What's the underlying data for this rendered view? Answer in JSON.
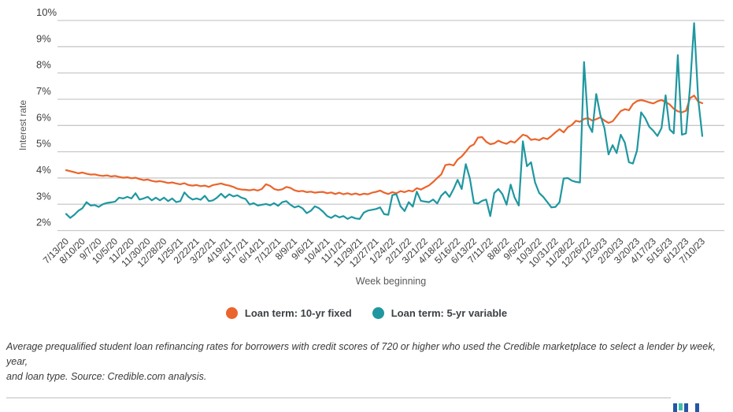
{
  "chart_data": {
    "type": "line",
    "title": "",
    "xlabel": "Week beginning",
    "ylabel": "Interest rate",
    "ylim": [
      2,
      10
    ],
    "grid": true,
    "legend_position": "bottom",
    "y_tick_labels": [
      "10%",
      "9%",
      "8%",
      "7%",
      "6%",
      "5%",
      "4%",
      "3%",
      "2%"
    ],
    "y_tick_values": [
      10,
      9,
      8,
      7,
      6,
      5,
      4,
      3,
      2
    ],
    "weeks_per_tick": 4,
    "x_tick_labels": [
      "7/13/20",
      "8/10/20",
      "9/7/20",
      "10/5/20",
      "11/2/20",
      "11/30/20",
      "12/28/20",
      "1/25/21",
      "2/22/21",
      "3/22/21",
      "4/19/21",
      "5/17/21",
      "6/14/21",
      "7/12/21",
      "8/9/21",
      "9/6/21",
      "10/4/21",
      "11/1/21",
      "11/29/21",
      "12/27/21",
      "1/24/22",
      "2/21/22",
      "3/21/22",
      "4/18/22",
      "5/16/22",
      "6/13/22",
      "7/11/22",
      "8/8/22",
      "9/5/22",
      "10/3/22",
      "10/31/22",
      "11/28/22",
      "12/26/22",
      "1/23/23",
      "2/20/23",
      "3/20/23",
      "4/17/23",
      "5/15/23",
      "6/12/23",
      "7/10/23"
    ],
    "series": [
      {
        "name": "Loan term: 10-yr fixed",
        "color": "#EB642B",
        "values": [
          4.3,
          4.26,
          4.22,
          4.18,
          4.21,
          4.16,
          4.13,
          4.14,
          4.1,
          4.08,
          4.1,
          4.06,
          4.08,
          4.04,
          4.01,
          4.03,
          3.99,
          4.01,
          3.96,
          3.92,
          3.94,
          3.89,
          3.86,
          3.88,
          3.85,
          3.81,
          3.83,
          3.79,
          3.76,
          3.8,
          3.73,
          3.71,
          3.73,
          3.69,
          3.71,
          3.66,
          3.73,
          3.76,
          3.79,
          3.74,
          3.71,
          3.66,
          3.59,
          3.56,
          3.55,
          3.53,
          3.56,
          3.52,
          3.58,
          3.76,
          3.7,
          3.58,
          3.54,
          3.57,
          3.66,
          3.62,
          3.53,
          3.49,
          3.51,
          3.46,
          3.48,
          3.44,
          3.46,
          3.47,
          3.42,
          3.45,
          3.39,
          3.44,
          3.38,
          3.42,
          3.37,
          3.41,
          3.36,
          3.4,
          3.38,
          3.44,
          3.47,
          3.52,
          3.44,
          3.39,
          3.46,
          3.42,
          3.5,
          3.46,
          3.52,
          3.49,
          3.61,
          3.56,
          3.64,
          3.72,
          3.85,
          4.0,
          4.14,
          4.49,
          4.52,
          4.48,
          4.7,
          4.82,
          5.0,
          5.2,
          5.28,
          5.54,
          5.56,
          5.38,
          5.29,
          5.32,
          5.42,
          5.35,
          5.3,
          5.4,
          5.35,
          5.5,
          5.65,
          5.6,
          5.45,
          5.48,
          5.44,
          5.53,
          5.48,
          5.6,
          5.74,
          5.86,
          5.74,
          5.93,
          6.02,
          6.18,
          6.14,
          6.25,
          6.28,
          6.19,
          6.24,
          6.31,
          6.19,
          6.1,
          6.16,
          6.35,
          6.55,
          6.62,
          6.58,
          6.82,
          6.93,
          6.97,
          6.93,
          6.88,
          6.84,
          6.92,
          6.97,
          6.89,
          6.8,
          6.64,
          6.54,
          6.5,
          6.56,
          7.04,
          7.14,
          6.91,
          6.85
        ]
      },
      {
        "name": "Loan term: 5-yr variable",
        "color": "#1F97A0",
        "values": [
          2.63,
          2.48,
          2.6,
          2.75,
          2.85,
          3.08,
          2.95,
          2.97,
          2.9,
          3.0,
          3.05,
          3.07,
          3.1,
          3.25,
          3.22,
          3.28,
          3.22,
          3.42,
          3.18,
          3.22,
          3.28,
          3.15,
          3.25,
          3.15,
          3.25,
          3.12,
          3.22,
          3.08,
          3.12,
          3.45,
          3.28,
          3.18,
          3.22,
          3.17,
          3.32,
          3.12,
          3.15,
          3.25,
          3.4,
          3.25,
          3.38,
          3.3,
          3.34,
          3.25,
          3.2,
          2.99,
          3.04,
          2.95,
          2.98,
          3.01,
          2.96,
          3.04,
          2.94,
          3.08,
          3.12,
          2.98,
          2.88,
          2.93,
          2.84,
          2.66,
          2.75,
          2.92,
          2.85,
          2.72,
          2.55,
          2.48,
          2.58,
          2.5,
          2.55,
          2.44,
          2.52,
          2.46,
          2.44,
          2.68,
          2.76,
          2.79,
          2.82,
          2.88,
          2.62,
          2.6,
          3.35,
          3.38,
          2.92,
          2.74,
          3.08,
          2.91,
          3.48,
          3.13,
          3.1,
          3.08,
          3.18,
          3.03,
          3.33,
          3.48,
          3.28,
          3.58,
          3.93,
          3.58,
          4.53,
          3.98,
          3.05,
          3.03,
          3.13,
          3.18,
          2.55,
          3.43,
          3.58,
          3.38,
          2.98,
          3.75,
          3.25,
          2.95,
          5.4,
          4.45,
          4.6,
          3.83,
          3.43,
          3.28,
          3.08,
          2.88,
          2.9,
          3.08,
          3.98,
          4.0,
          3.9,
          3.85,
          3.83,
          8.42,
          6.05,
          5.75,
          7.2,
          6.4,
          5.9,
          4.9,
          5.25,
          4.95,
          5.65,
          5.35,
          4.6,
          4.55,
          5.05,
          6.5,
          6.28,
          5.95,
          5.8,
          5.6,
          5.9,
          7.15,
          5.85,
          5.7,
          8.68,
          5.65,
          5.7,
          7.5,
          9.9,
          7.0,
          5.6
        ]
      }
    ]
  },
  "legend": {
    "item1": "Loan term: 10-yr fixed",
    "item2": "Loan term: 5-yr variable"
  },
  "caption": {
    "line1": "Average prequalified student loan refinancing rates for borrowers with credit scores of 720 or higher who used the Credible marketplace to select a lender by week, year,",
    "line2": "and loan type. Source: Credible.com analysis."
  },
  "footer_logo": {
    "colors": [
      "#2456A4",
      "#3EBFAD",
      "#2456A4",
      "#2456A4"
    ],
    "heights": [
      12,
      9,
      12,
      11
    ]
  }
}
